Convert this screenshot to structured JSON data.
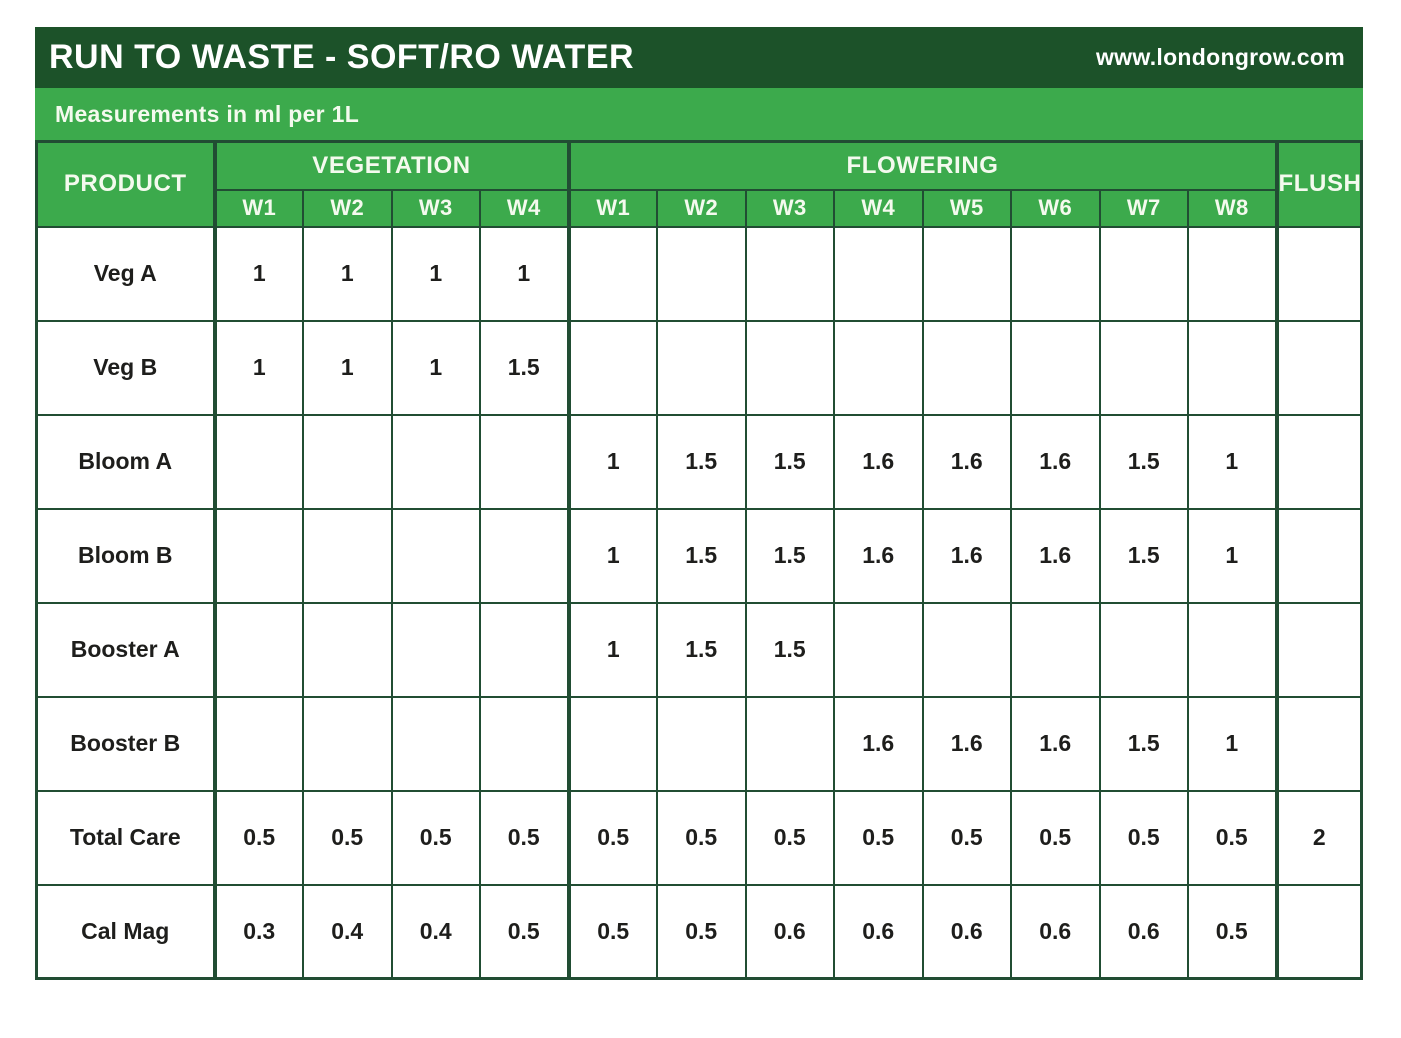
{
  "header": {
    "title": "RUN TO WASTE - SOFT/RO WATER",
    "website": "www.londongrow.com"
  },
  "subheader": {
    "text": "Measurements in ml per 1L"
  },
  "table": {
    "product_header": "PRODUCT",
    "flush_header": "FLUSH",
    "groups": [
      {
        "label": "VEGETATION",
        "weeks": [
          "W1",
          "W2",
          "W3",
          "W4"
        ]
      },
      {
        "label": "FLOWERING",
        "weeks": [
          "W1",
          "W2",
          "W3",
          "W4",
          "W5",
          "W6",
          "W7",
          "W8"
        ]
      }
    ],
    "rows": [
      {
        "product": "Veg A",
        "vegetation": [
          "1",
          "1",
          "1",
          "1"
        ],
        "flowering": [
          "",
          "",
          "",
          "",
          "",
          "",
          "",
          ""
        ],
        "flush": ""
      },
      {
        "product": "Veg B",
        "vegetation": [
          "1",
          "1",
          "1",
          "1.5"
        ],
        "flowering": [
          "",
          "",
          "",
          "",
          "",
          "",
          "",
          ""
        ],
        "flush": ""
      },
      {
        "product": "Bloom A",
        "vegetation": [
          "",
          "",
          "",
          ""
        ],
        "flowering": [
          "1",
          "1.5",
          "1.5",
          "1.6",
          "1.6",
          "1.6",
          "1.5",
          "1"
        ],
        "flush": ""
      },
      {
        "product": "Bloom B",
        "vegetation": [
          "",
          "",
          "",
          ""
        ],
        "flowering": [
          "1",
          "1.5",
          "1.5",
          "1.6",
          "1.6",
          "1.6",
          "1.5",
          "1"
        ],
        "flush": ""
      },
      {
        "product": "Booster A",
        "vegetation": [
          "",
          "",
          "",
          ""
        ],
        "flowering": [
          "1",
          "1.5",
          "1.5",
          "",
          "",
          "",
          "",
          ""
        ],
        "flush": ""
      },
      {
        "product": "Booster B",
        "vegetation": [
          "",
          "",
          "",
          ""
        ],
        "flowering": [
          "",
          "",
          "",
          "1.6",
          "1.6",
          "1.6",
          "1.5",
          "1"
        ],
        "flush": ""
      },
      {
        "product": "Total Care",
        "vegetation": [
          "0.5",
          "0.5",
          "0.5",
          "0.5"
        ],
        "flowering": [
          "0.5",
          "0.5",
          "0.5",
          "0.5",
          "0.5",
          "0.5",
          "0.5",
          "0.5"
        ],
        "flush": "2"
      },
      {
        "product": "Cal Mag",
        "vegetation": [
          "0.3",
          "0.4",
          "0.4",
          "0.5"
        ],
        "flowering": [
          "0.5",
          "0.5",
          "0.6",
          "0.6",
          "0.6",
          "0.6",
          "0.6",
          "0.5"
        ],
        "flush": ""
      }
    ]
  },
  "colors": {
    "header_dark_green": "#1c5229",
    "brand_green": "#3caa4c",
    "grid_line_green": "#214d33",
    "header_text": "#f4faee",
    "body_text": "#1e1e1c"
  }
}
